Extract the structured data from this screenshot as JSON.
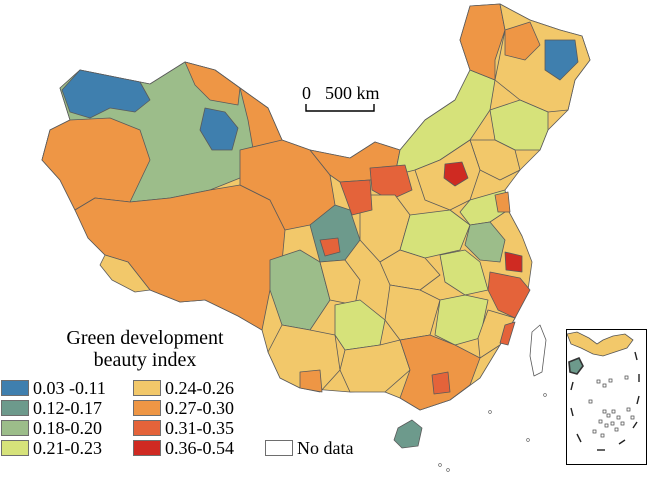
{
  "map": {
    "scale_bar": {
      "zero": "0",
      "distance": "500 km"
    },
    "legend": {
      "title_line1": "Green development",
      "title_line2": "beauty index",
      "classes": [
        {
          "label": "0.03 -0.11",
          "color": "#3f7fae"
        },
        {
          "label": "0.12-0.17",
          "color": "#6d9a8c"
        },
        {
          "label": "0.18-0.20",
          "color": "#9cbd8a"
        },
        {
          "label": "0.21-0.23",
          "color": "#d6e27a"
        },
        {
          "label": "0.24-0.26",
          "color": "#f2c86a"
        },
        {
          "label": "0.27-0.30",
          "color": "#ee9645"
        },
        {
          "label": "0.31-0.35",
          "color": "#e4633a"
        },
        {
          "label": "0.36-0.54",
          "color": "#cf2a22"
        },
        {
          "label": "No data",
          "color": "#ffffff"
        }
      ]
    },
    "inset": {
      "name": "South China Sea islands"
    }
  }
}
